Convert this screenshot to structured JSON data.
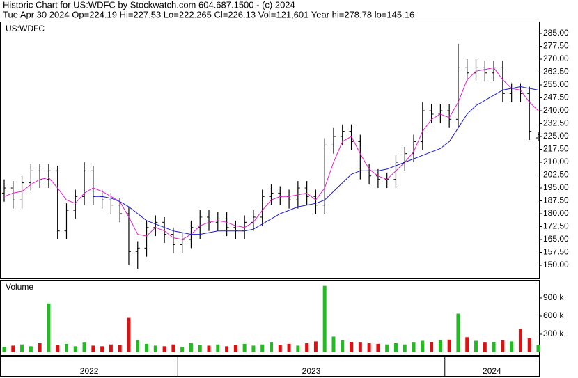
{
  "chart_data": {
    "type": "ohlc",
    "title": "Historic Chart for US:WDFC by Stockwatch.com 604.687.1500 - (c) 2024",
    "subtitle": "Tue Apr 30 2024   Op=224.19   Hi=227.53   Lo=222.265   Cl=226.13   Vol=121,601   Year hi=278.78   lo=145.16",
    "symbol": "US:WDFC",
    "volume_label": "Volume",
    "categories": [
      "2022",
      null,
      null,
      null,
      null,
      null,
      null,
      null,
      null,
      null,
      null,
      null,
      null,
      null,
      null,
      null,
      null,
      null,
      null,
      null,
      "2023",
      null,
      null,
      null,
      null,
      null,
      null,
      null,
      null,
      null,
      null,
      null,
      null,
      null,
      null,
      null,
      null,
      null,
      null,
      null,
      null,
      null,
      null,
      null,
      null,
      null,
      null,
      null,
      null,
      null,
      "2024",
      null,
      null,
      null,
      null,
      null,
      null,
      null,
      null,
      null,
      null
    ],
    "open": [
      192,
      195,
      188,
      198,
      205,
      200,
      205,
      170,
      182,
      190,
      205,
      190,
      188,
      185,
      180,
      158,
      160,
      172,
      175,
      168,
      162,
      165,
      172,
      178,
      175,
      177,
      172,
      170,
      175,
      178,
      190,
      192,
      190,
      188,
      195,
      190,
      185,
      220,
      225,
      228,
      222,
      205,
      202,
      200,
      200,
      210,
      215,
      222,
      240,
      238,
      240,
      235,
      265,
      262,
      265,
      262,
      265,
      250,
      252,
      250,
      224.19
    ],
    "high": [
      200,
      199,
      202,
      209,
      209,
      209,
      208,
      186,
      194,
      210,
      208,
      194,
      192,
      189,
      184,
      164,
      176,
      179,
      178,
      172,
      169,
      176,
      182,
      182,
      181,
      181,
      176,
      179,
      182,
      194,
      197,
      196,
      194,
      199,
      199,
      194,
      224,
      230,
      232,
      232,
      226,
      209,
      206,
      204,
      214,
      219,
      226,
      245,
      244,
      244,
      244,
      279,
      270,
      270,
      269,
      269,
      269,
      256,
      256,
      254,
      227.53
    ],
    "low": [
      187,
      183,
      183,
      193,
      195,
      195,
      165,
      165,
      177,
      185,
      185,
      183,
      180,
      175,
      150,
      148,
      155,
      167,
      163,
      157,
      157,
      160,
      165,
      170,
      170,
      167,
      165,
      165,
      170,
      173,
      185,
      185,
      183,
      183,
      185,
      180,
      180,
      215,
      220,
      217,
      200,
      197,
      195,
      195,
      195,
      205,
      210,
      217,
      233,
      233,
      230,
      230,
      257,
      257,
      257,
      257,
      245,
      245,
      245,
      223,
      222.265
    ],
    "close": [
      195,
      188,
      198,
      205,
      200,
      205,
      170,
      182,
      190,
      205,
      190,
      188,
      185,
      180,
      158,
      160,
      172,
      175,
      168,
      162,
      165,
      172,
      178,
      175,
      177,
      172,
      170,
      175,
      178,
      190,
      192,
      190,
      188,
      195,
      190,
      185,
      220,
      225,
      228,
      222,
      205,
      202,
      200,
      200,
      210,
      215,
      222,
      240,
      238,
      240,
      235,
      265,
      262,
      265,
      262,
      265,
      250,
      252,
      250,
      228,
      226.13
    ],
    "bar_color": "#000000",
    "series": [
      {
        "color": "#e020c8",
        "values": [
          190,
          192,
          193,
          197,
          200,
          201,
          195,
          188,
          186,
          192,
          195,
          193,
          190,
          187,
          178,
          168,
          167,
          172,
          170,
          166,
          165,
          168,
          173,
          175,
          176,
          175,
          173,
          172,
          175,
          182,
          188,
          190,
          190,
          191,
          192,
          188,
          195,
          210,
          222,
          225,
          215,
          206,
          202,
          200,
          205,
          210,
          216,
          228,
          235,
          238,
          236,
          245,
          258,
          263,
          264,
          265,
          258,
          253,
          252,
          245,
          240
        ]
      },
      {
        "color": "#1a1ad0",
        "values": [
          null,
          null,
          null,
          null,
          null,
          null,
          null,
          null,
          null,
          null,
          190,
          190,
          189,
          187,
          184,
          180,
          176,
          174,
          172,
          170,
          169,
          168,
          168,
          169,
          170,
          170,
          170,
          170,
          171,
          174,
          177,
          180,
          182,
          184,
          185,
          186,
          188,
          193,
          198,
          203,
          205,
          205,
          205,
          206,
          208,
          210,
          212,
          214,
          216,
          218,
          222,
          230,
          238,
          243,
          246,
          249,
          252,
          253,
          254,
          253,
          252
        ]
      }
    ],
    "ylim": [
      142.3,
      291.5
    ],
    "yticks": [
      {
        "value": 150,
        "label": "150.00"
      },
      {
        "value": 157.5,
        "label": "157.50"
      },
      {
        "value": 165,
        "label": "165.00"
      },
      {
        "value": 172.5,
        "label": "172.50"
      },
      {
        "value": 180,
        "label": "180.00"
      },
      {
        "value": 187.5,
        "label": "187.50"
      },
      {
        "value": 195,
        "label": "195.00"
      },
      {
        "value": 202.5,
        "label": "202.50"
      },
      {
        "value": 210,
        "label": "210.00"
      },
      {
        "value": 217.5,
        "label": "217.50"
      },
      {
        "value": 225,
        "label": "225.00"
      },
      {
        "value": 232.5,
        "label": "232.50"
      },
      {
        "value": 240,
        "label": "240.00"
      },
      {
        "value": 247.5,
        "label": "247.50"
      },
      {
        "value": 255,
        "label": "255.00"
      },
      {
        "value": 262.5,
        "label": "262.50"
      },
      {
        "value": 270,
        "label": "270.00"
      },
      {
        "value": 277.5,
        "label": "277.50"
      },
      {
        "value": 285,
        "label": "285.00"
      }
    ],
    "volume": [
      90000,
      110000,
      130000,
      100000,
      150000,
      810000,
      120000,
      140000,
      100000,
      160000,
      110000,
      100000,
      130000,
      120000,
      570000,
      200000,
      140000,
      110000,
      100000,
      130000,
      90000,
      150000,
      120000,
      110000,
      130000,
      100000,
      120000,
      140000,
      110000,
      130000,
      160000,
      120000,
      140000,
      110000,
      150000,
      180000,
      1100000,
      260000,
      200000,
      170000,
      160000,
      150000,
      140000,
      130000,
      150000,
      130000,
      160000,
      190000,
      170000,
      200000,
      210000,
      640000,
      250000,
      190000,
      160000,
      170000,
      200000,
      180000,
      390000,
      230000,
      121601
    ],
    "up_color": "#22bb22",
    "down_color": "#dd1111",
    "vlim": [
      0,
      1188000
    ],
    "vticks": [
      {
        "value": 300000,
        "label": "300 k"
      },
      {
        "value": 600000,
        "label": "600 k"
      },
      {
        "value": 900000,
        "label": "900 k"
      }
    ]
  }
}
